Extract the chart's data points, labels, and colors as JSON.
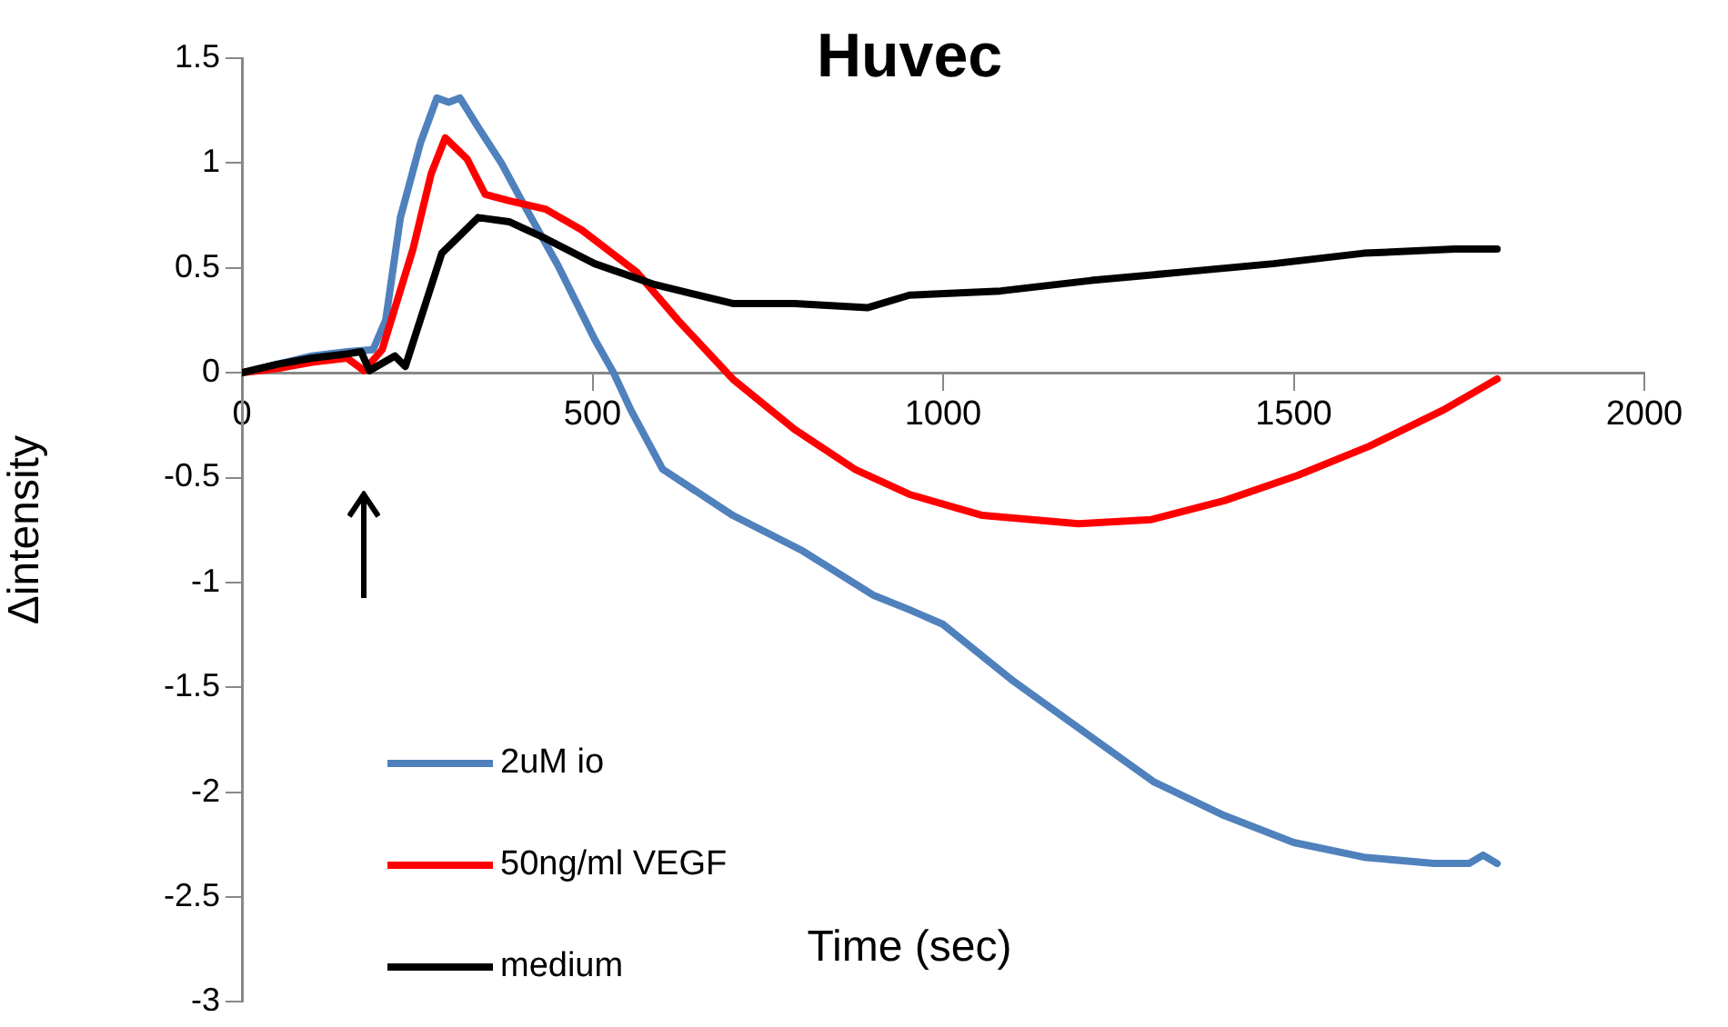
{
  "chart_data": {
    "type": "line",
    "title": "Huvec",
    "xlabel": "Time (sec)",
    "ylabel": "Δintensity",
    "xlim": [
      0,
      2000
    ],
    "xticks": [
      0,
      500,
      1000,
      1500,
      2000
    ],
    "ylim": [
      -3,
      1.5
    ],
    "yticks": [
      -3,
      -2.5,
      -2,
      -1.5,
      -1,
      -0.5,
      0,
      0.5,
      1,
      1.5
    ],
    "grid": false,
    "legend": "bottom left",
    "marker": "none",
    "line_style": "solid",
    "series": [
      {
        "name": "2uM io",
        "color": "#4f81bd",
        "x": [
          0,
          50,
          100,
          150,
          187,
          205,
          226,
          255,
          278,
          295,
          311,
          337,
          370,
          399,
          451,
          503,
          530,
          555,
          600,
          700,
          800,
          900,
          952,
          1000,
          1100,
          1200,
          1300,
          1400,
          1500,
          1600,
          1700,
          1750,
          1770,
          1790
        ],
        "values": [
          0,
          0.04,
          0.08,
          0.1,
          0.11,
          0.25,
          0.74,
          1.1,
          1.31,
          1.29,
          1.31,
          1.17,
          1.0,
          0.82,
          0.51,
          0.16,
          0,
          -0.18,
          -0.46,
          -0.68,
          -0.85,
          -1.06,
          -1.13,
          -1.2,
          -1.47,
          -1.71,
          -1.95,
          -2.11,
          -2.24,
          -2.31,
          -2.34,
          -2.34,
          -2.3,
          -2.34
        ]
      },
      {
        "name": "50ng/ml VEGF",
        "color": "#ff0000",
        "x": [
          0,
          50,
          100,
          150,
          174,
          200,
          244,
          270,
          290,
          321,
          347,
          381,
          433,
          485,
          563,
          622,
          700,
          788,
          874,
          952,
          1056,
          1193,
          1297,
          1401,
          1505,
          1608,
          1712,
          1764,
          1790
        ],
        "values": [
          0,
          0.02,
          0.05,
          0.07,
          0.01,
          0.11,
          0.59,
          0.95,
          1.12,
          1.02,
          0.85,
          0.82,
          0.78,
          0.68,
          0.48,
          0.25,
          -0.03,
          -0.27,
          -0.46,
          -0.58,
          -0.68,
          -0.72,
          -0.7,
          -0.61,
          -0.49,
          -0.35,
          -0.18,
          -0.08,
          -0.03
        ]
      },
      {
        "name": "medium",
        "color": "#000000",
        "x": [
          0,
          50,
          100,
          150,
          170,
          182,
          218,
          233,
          285,
          337,
          381,
          433,
          503,
          589,
          700,
          788,
          892,
          952,
          1082,
          1211,
          1341,
          1471,
          1600,
          1730,
          1790
        ],
        "values": [
          0,
          0.04,
          0.07,
          0.09,
          0.1,
          0.01,
          0.08,
          0.03,
          0.57,
          0.74,
          0.72,
          0.64,
          0.52,
          0.42,
          0.33,
          0.33,
          0.31,
          0.37,
          0.39,
          0.44,
          0.48,
          0.52,
          0.57,
          0.59,
          0.59
        ]
      }
    ]
  }
}
